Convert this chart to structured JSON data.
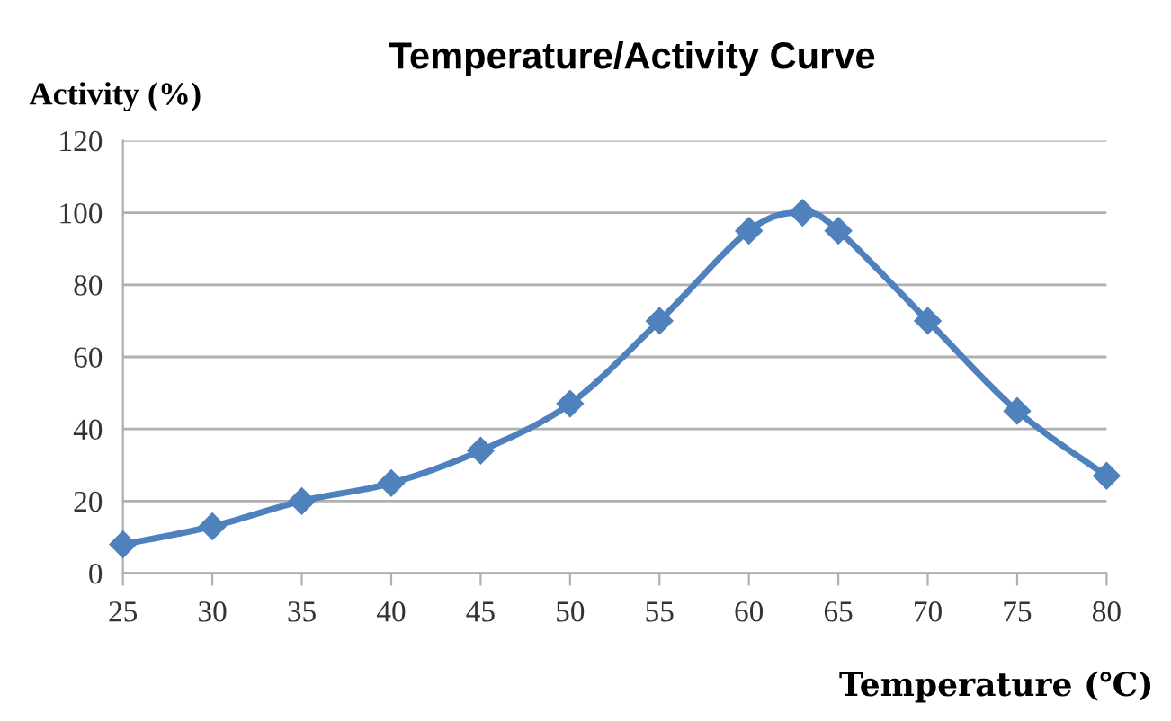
{
  "chart_data": {
    "type": "line",
    "title": "Temperature/Activity Curve",
    "ylabel": "Activity (%)",
    "xlabel": "Temperature (℃)",
    "x": [
      25,
      30,
      35,
      40,
      45,
      50,
      55,
      60,
      63,
      65,
      70,
      75,
      80
    ],
    "series": [
      {
        "color": "#4f81bd",
        "values": [
          8,
          13,
          20,
          25,
          34,
          47,
          70,
          95,
          100,
          95,
          70,
          45,
          27
        ]
      }
    ],
    "xlim": [
      25,
      80
    ],
    "xticks": [
      25,
      30,
      35,
      40,
      45,
      50,
      55,
      60,
      65,
      70,
      75,
      80
    ],
    "ylim": [
      0,
      120
    ],
    "yticks": [
      0,
      20,
      40,
      60,
      80,
      100,
      120
    ],
    "grid": "y",
    "marker": "diamond",
    "line_style": "solid",
    "legend": false
  }
}
